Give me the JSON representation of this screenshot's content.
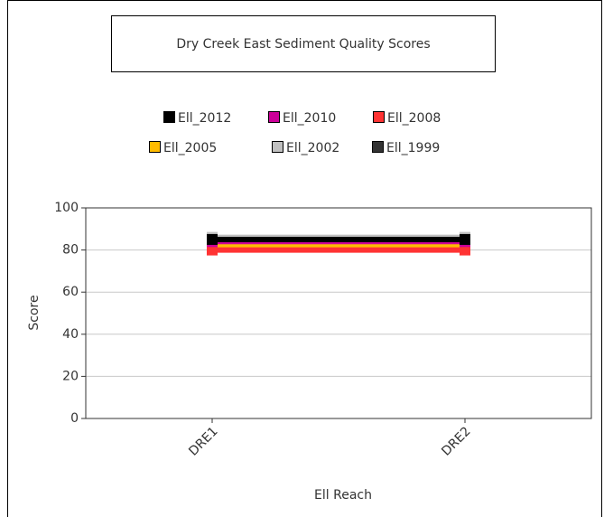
{
  "chart_data": {
    "type": "line",
    "title": "Dry Creek East Sediment Quality Scores",
    "categories": [
      "DRE1",
      "DRE2"
    ],
    "series": [
      {
        "name": "Ell_2012",
        "color": "#000000",
        "values": [
          85,
          85
        ]
      },
      {
        "name": "Ell_2010",
        "color": "#cc0099",
        "values": [
          84,
          84
        ]
      },
      {
        "name": "Ell_2008",
        "color": "#ff3333",
        "values": [
          80,
          80
        ]
      },
      {
        "name": "Ell_2005",
        "color": "#ffbb00",
        "values": [
          82,
          82
        ]
      },
      {
        "name": "Ell_2002",
        "color": "#c0c0c0",
        "values": [
          86,
          86
        ]
      },
      {
        "name": "Ell_1999",
        "color": "#333333",
        "values": [
          85,
          85
        ]
      }
    ],
    "ylabel": "Score",
    "xlabel": "Ell Reach",
    "ylim": [
      0,
      100
    ],
    "yticks": [
      0,
      20,
      40,
      60,
      80,
      100
    ],
    "grid": true
  }
}
